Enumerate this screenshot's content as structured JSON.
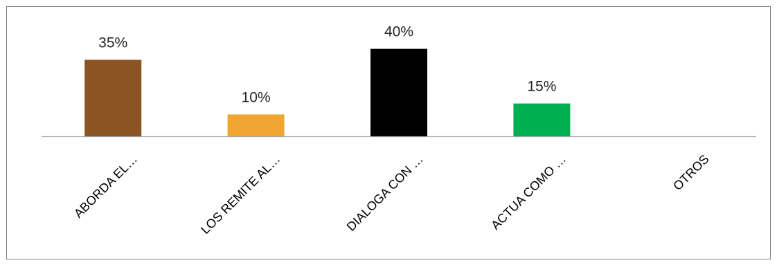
{
  "chart_data": {
    "type": "bar",
    "title": "",
    "xlabel": "",
    "ylabel": "",
    "categories": [
      "ABORDA EL…",
      "LOS REMITE AL…",
      "DIALOGA CON …",
      "ACTUA COMO …",
      "OTROS"
    ],
    "values": [
      35,
      10,
      40,
      15,
      0
    ],
    "data_labels": [
      "35%",
      "10%",
      "40%",
      "15%",
      ""
    ],
    "colors": [
      "#8B5523",
      "#F0A431",
      "#000000",
      "#00B050",
      "#ffffff"
    ],
    "ylim": [
      0,
      45
    ],
    "grid": false,
    "legend": "none"
  }
}
